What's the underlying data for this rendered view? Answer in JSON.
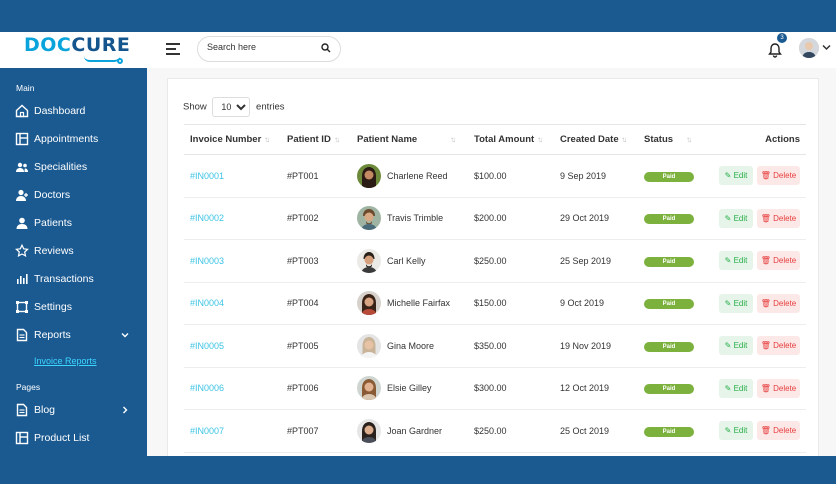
{
  "logo": {
    "text_start": "DOC",
    "text_mid": "C",
    "text_end": "URE"
  },
  "search": {
    "placeholder": "Search here"
  },
  "notifications": {
    "count": "3"
  },
  "sidebar": {
    "section_main": "Main",
    "section_pages": "Pages",
    "items": [
      {
        "label": "Dashboard",
        "icon": "home-icon"
      },
      {
        "label": "Appointments",
        "icon": "layout-icon"
      },
      {
        "label": "Specialities",
        "icon": "users-icon"
      },
      {
        "label": "Doctors",
        "icon": "user-plus-icon"
      },
      {
        "label": "Patients",
        "icon": "user-icon"
      },
      {
        "label": "Reviews",
        "icon": "star-icon"
      },
      {
        "label": "Transactions",
        "icon": "activity-icon"
      },
      {
        "label": "Settings",
        "icon": "settings-icon"
      },
      {
        "label": "Reports",
        "icon": "document-icon"
      },
      {
        "label": "Blog",
        "icon": "document-icon"
      },
      {
        "label": "Product List",
        "icon": "layout-icon"
      }
    ],
    "sub_item": "Invoice Reports"
  },
  "table": {
    "show_label": "Show",
    "entries_label": "entries",
    "page_size": "10",
    "columns": [
      "Invoice Number",
      "Patient ID",
      "Patient Name",
      "Total Amount",
      "Created Date",
      "Status",
      "Actions"
    ],
    "edit_label": "Edit",
    "delete_label": "Delete",
    "rows": [
      {
        "invoice": "#IN0001",
        "patient_id": "#PT001",
        "name": "Charlene Reed",
        "amount": "$100.00",
        "date": "9 Sep 2019",
        "status": "Paid"
      },
      {
        "invoice": "#IN0002",
        "patient_id": "#PT002",
        "name": "Travis Trimble",
        "amount": "$200.00",
        "date": "29 Oct 2019",
        "status": "Paid"
      },
      {
        "invoice": "#IN0003",
        "patient_id": "#PT003",
        "name": "Carl Kelly",
        "amount": "$250.00",
        "date": "25 Sep 2019",
        "status": "Paid"
      },
      {
        "invoice": "#IN0004",
        "patient_id": "#PT004",
        "name": "Michelle Fairfax",
        "amount": "$150.00",
        "date": "9 Oct 2019",
        "status": "Paid"
      },
      {
        "invoice": "#IN0005",
        "patient_id": "#PT005",
        "name": "Gina Moore",
        "amount": "$350.00",
        "date": "19 Nov 2019",
        "status": "Paid"
      },
      {
        "invoice": "#IN0006",
        "patient_id": "#PT006",
        "name": "Elsie Gilley",
        "amount": "$300.00",
        "date": "12 Oct 2019",
        "status": "Paid"
      },
      {
        "invoice": "#IN0007",
        "patient_id": "#PT007",
        "name": "Joan Gardner",
        "amount": "$250.00",
        "date": "25 Oct 2019",
        "status": "Paid"
      }
    ]
  },
  "colors": {
    "brand": "#1b5a91",
    "accent": "#09a4dc",
    "paid": "#7bb13c",
    "edit": "#26af48",
    "delete": "#e63c3c"
  }
}
